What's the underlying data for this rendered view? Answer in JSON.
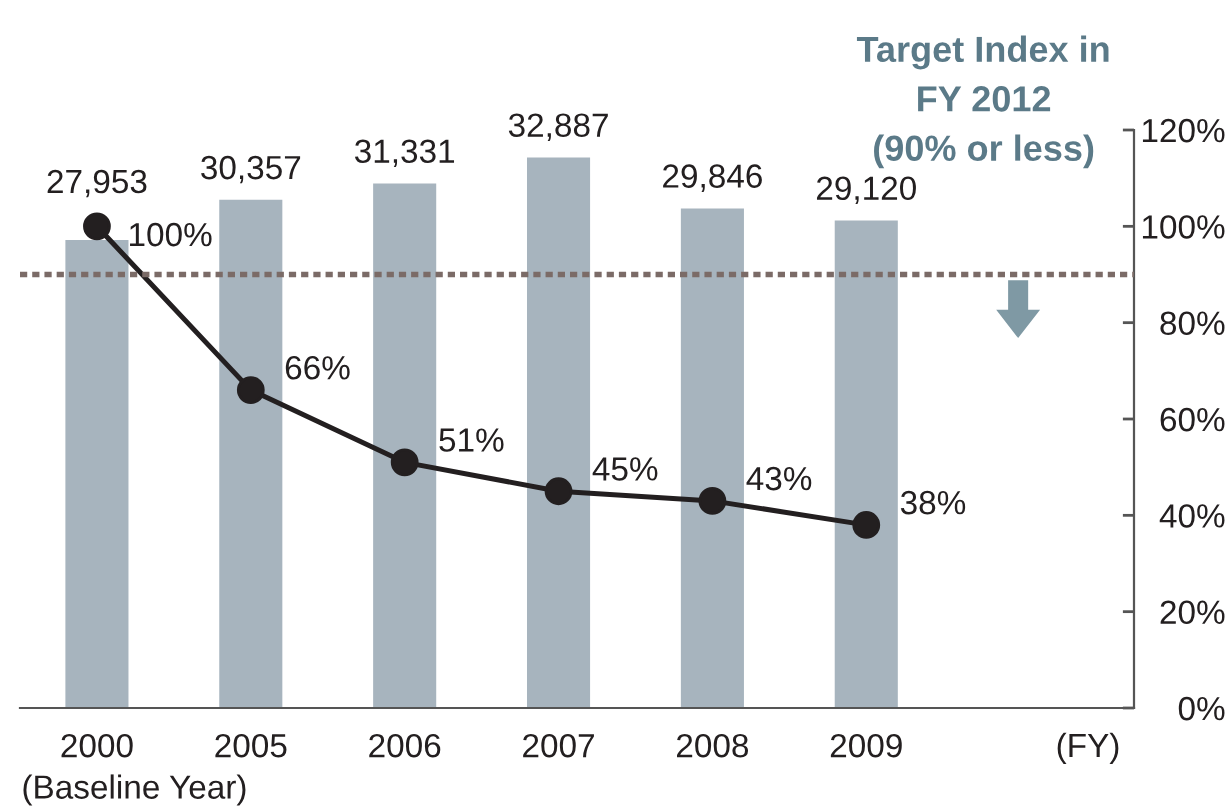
{
  "chart_data": {
    "type": "bar",
    "categories": [
      "2000",
      "2005",
      "2006",
      "2007",
      "2008",
      "2009"
    ],
    "xlabel": "(FY)",
    "annotations": [
      "(Baseline Year)"
    ],
    "series": [
      {
        "color": "#a7b4be",
        "values": [
          27953,
          30357,
          31331,
          32887,
          29846,
          29120
        ],
        "value_labels": [
          "27,953",
          "30,357",
          "31,331",
          "32,887",
          "29,846",
          "29,120"
        ]
      },
      {
        "type": "line",
        "axis": "y2",
        "color": "#231f20",
        "marker": "circle",
        "line_style": "solid",
        "values": [
          100,
          66,
          51,
          45,
          43,
          38
        ],
        "value_labels": [
          "100%",
          "66%",
          "51%",
          "45%",
          "43%",
          "38%"
        ]
      }
    ],
    "y2lim": [
      0,
      120
    ],
    "y2ticks": [
      {
        "value": 0,
        "label": "0%"
      },
      {
        "value": 20,
        "label": "20%"
      },
      {
        "value": 40,
        "label": "40%"
      },
      {
        "value": 60,
        "label": "60%"
      },
      {
        "value": 80,
        "label": "80%"
      },
      {
        "value": 100,
        "label": "100%"
      },
      {
        "value": 120,
        "label": "120%"
      }
    ],
    "ref_lines": [
      {
        "axis": "y2",
        "value": 90,
        "label": "Target Index in\nFY 2012\n(90% or less)",
        "color": "#7b6b67",
        "line_style": "dashed"
      }
    ]
  }
}
